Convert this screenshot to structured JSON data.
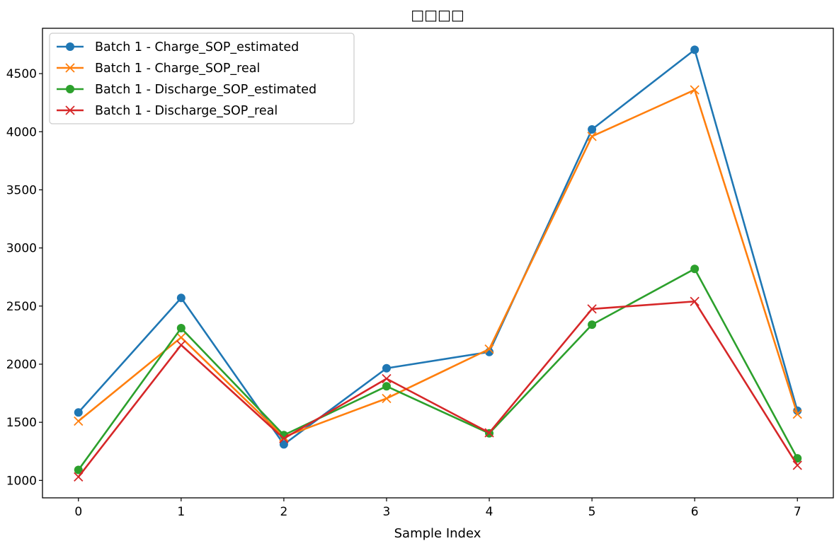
{
  "chart_data": {
    "type": "line",
    "title": "□□□□",
    "xlabel": "Sample Index",
    "ylabel": "",
    "x": [
      0,
      1,
      2,
      3,
      4,
      5,
      6,
      7
    ],
    "xticks": [
      0,
      1,
      2,
      3,
      4,
      5,
      6,
      7
    ],
    "yticks": [
      1000,
      1500,
      2000,
      2500,
      3000,
      3500,
      4000,
      4500
    ],
    "ytick_labels": [
      "1000",
      "1500",
      "2000",
      "2500",
      "3000",
      "3500",
      "4000",
      "4500"
    ],
    "xlim": [
      -0.35,
      7.35
    ],
    "ylim": [
      850,
      4890
    ],
    "grid": false,
    "legend_position": "top-left",
    "series": [
      {
        "name": "Batch 1 - Charge_SOP_estimated",
        "color": "#1f77b4",
        "marker": "circle",
        "values": [
          1585,
          2570,
          1310,
          1965,
          2105,
          4020,
          4705,
          1600
        ]
      },
      {
        "name": "Batch 1 - Charge_SOP_real",
        "color": "#ff7f0e",
        "marker": "x",
        "values": [
          1510,
          2230,
          1375,
          1705,
          2130,
          3960,
          4360,
          1570
        ]
      },
      {
        "name": "Batch 1 - Discharge_SOP_estimated",
        "color": "#2ca02c",
        "marker": "circle",
        "values": [
          1090,
          2310,
          1390,
          1810,
          1405,
          2340,
          2820,
          1190
        ]
      },
      {
        "name": "Batch 1 - Discharge_SOP_real",
        "color": "#d62728",
        "marker": "x",
        "values": [
          1030,
          2165,
          1360,
          1875,
          1410,
          2475,
          2540,
          1130
        ]
      }
    ]
  }
}
